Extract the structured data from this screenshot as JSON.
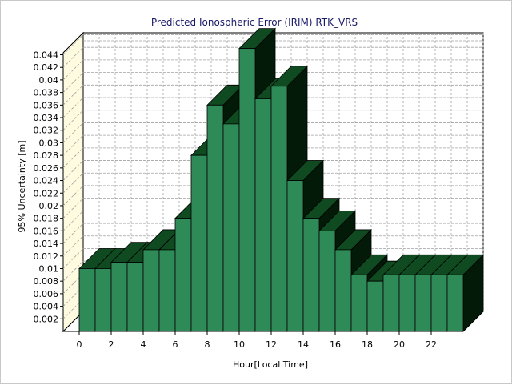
{
  "chart_data": {
    "type": "bar",
    "title": "Predicted Ionospheric Error (IRIM) RTK_VRS",
    "xlabel": "Hour[Local Time]",
    "ylabel": "95% Uncertainty [m]",
    "categories": [
      0,
      1,
      2,
      3,
      4,
      5,
      6,
      7,
      8,
      9,
      10,
      11,
      12,
      13,
      14,
      15,
      16,
      17,
      18,
      19,
      20,
      21,
      22,
      23
    ],
    "x_tick_labels": [
      "0",
      "2",
      "4",
      "6",
      "8",
      "10",
      "12",
      "14",
      "16",
      "18",
      "20",
      "22"
    ],
    "y_tick_labels": [
      "0.002",
      "0.004",
      "0.006",
      "0.008",
      "0.01",
      "0.012",
      "0.014",
      "0.016",
      "0.018",
      "0.02",
      "0.022",
      "0.024",
      "0.026",
      "0.028",
      "0.03",
      "0.032",
      "0.034",
      "0.036",
      "0.038",
      "0.04",
      "0.042",
      "0.044"
    ],
    "values": [
      0.01,
      0.01,
      0.011,
      0.011,
      0.013,
      0.013,
      0.018,
      0.028,
      0.036,
      0.033,
      0.045,
      0.037,
      0.039,
      0.024,
      0.018,
      0.016,
      0.013,
      0.009,
      0.008,
      0.009,
      0.009,
      0.009,
      0.009,
      0.009
    ],
    "ylim": [
      0,
      0.046
    ],
    "grid": true,
    "style_3d": true,
    "colors": {
      "bar_front": "#2e8b57",
      "bar_top": "#0f4a20",
      "bar_side": "#031a08",
      "back_wall": "#ffffff",
      "left_wall": "#fffbe0",
      "grid": "#a0a0a0",
      "title": "#1a1a6a"
    }
  }
}
